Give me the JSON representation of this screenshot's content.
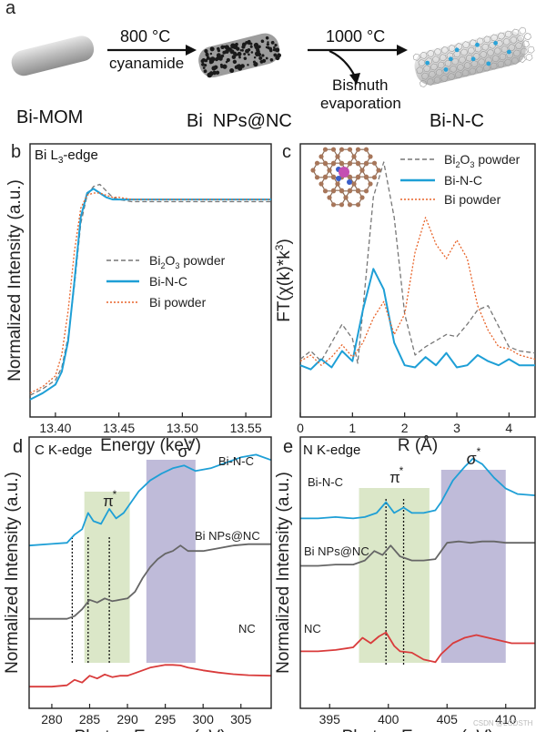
{
  "schematic": {
    "panel_letter": "a",
    "step1_temp": "800 °C",
    "step1_reagent": "cyanamide",
    "step2_temp": "1000 °C",
    "step2_note_line1": "Bismuth",
    "step2_note_line2": "evaporation",
    "label_start": "Bi-MOM",
    "label_mid": "Bi  NPs@NC",
    "label_end": "Bi-N-C"
  },
  "panels": {
    "b": {
      "letter": "b",
      "edge": "Bi L3-edge"
    },
    "c": {
      "letter": "c"
    },
    "d": {
      "letter": "d",
      "edge": "C K-edge",
      "pi": "π*",
      "sigma": "σ*"
    },
    "e": {
      "letter": "e",
      "edge": "N K-edge",
      "pi": "π*",
      "sigma": "σ*"
    }
  },
  "watermark": "CSDN @LGDSTH",
  "chart_data": [
    {
      "id": "b",
      "type": "line",
      "title": "Bi L3-edge",
      "xlabel": "Energy (keV)",
      "ylabel": "Normalized Intensity (a.u.)",
      "xlim": [
        13.38,
        13.57
      ],
      "ylim": [
        0,
        1.1
      ],
      "xticks": [
        13.4,
        13.45,
        13.5,
        13.55
      ],
      "xtick_labels": [
        "13.40",
        "13.45",
        "13.50",
        "13.55"
      ],
      "legend": [
        "Bi2O3 powder",
        "Bi-N-C",
        "Bi powder"
      ],
      "series": [
        {
          "name": "Bi2O3 powder",
          "color": "#777777",
          "dash": "5,3",
          "x": [
            13.38,
            13.39,
            13.4,
            13.405,
            13.41,
            13.415,
            13.42,
            13.425,
            13.43,
            13.435,
            13.44,
            13.445,
            13.45,
            13.46,
            13.48,
            13.5,
            13.52,
            13.54,
            13.57
          ],
          "y": [
            0.05,
            0.08,
            0.12,
            0.18,
            0.32,
            0.56,
            0.85,
            0.98,
            1.02,
            1.03,
            1.0,
            0.97,
            0.96,
            0.95,
            0.95,
            0.95,
            0.95,
            0.95,
            0.95
          ]
        },
        {
          "name": "Bi-N-C",
          "color": "#1e9fd6",
          "dash": "",
          "x": [
            13.38,
            13.39,
            13.4,
            13.405,
            13.41,
            13.415,
            13.42,
            13.425,
            13.43,
            13.435,
            13.44,
            13.445,
            13.45,
            13.46,
            13.48,
            13.5,
            13.52,
            13.54,
            13.57
          ],
          "y": [
            0.03,
            0.06,
            0.1,
            0.16,
            0.3,
            0.58,
            0.88,
            0.99,
            1.01,
            0.99,
            0.97,
            0.96,
            0.96,
            0.96,
            0.96,
            0.96,
            0.96,
            0.96,
            0.96
          ]
        },
        {
          "name": "Bi powder",
          "color": "#e8642a",
          "dash": "2,2",
          "x": [
            13.38,
            13.39,
            13.4,
            13.405,
            13.41,
            13.415,
            13.42,
            13.425,
            13.43,
            13.435,
            13.44,
            13.445,
            13.45,
            13.46,
            13.48,
            13.5,
            13.52,
            13.54,
            13.57
          ],
          "y": [
            0.06,
            0.09,
            0.14,
            0.24,
            0.44,
            0.72,
            0.92,
            0.98,
            0.99,
            0.99,
            0.98,
            0.97,
            0.97,
            0.96,
            0.96,
            0.96,
            0.96,
            0.96,
            0.96
          ]
        }
      ]
    },
    {
      "id": "c",
      "type": "line",
      "xlabel": "R (Å)",
      "ylabel": "FT(χ(k)*k3)",
      "xlim": [
        0,
        4.5
      ],
      "ylim": [
        0,
        1.1
      ],
      "xticks": [
        0,
        1,
        2,
        3,
        4
      ],
      "xtick_labels": [
        "0",
        "1",
        "2",
        "3",
        "4"
      ],
      "legend": [
        "Bi2O3 powder",
        "Bi-N-C",
        "Bi powder"
      ],
      "series": [
        {
          "name": "Bi2O3 powder",
          "color": "#777777",
          "dash": "5,3",
          "x": [
            0,
            0.2,
            0.4,
            0.6,
            0.8,
            1.0,
            1.1,
            1.2,
            1.4,
            1.6,
            1.8,
            2.0,
            2.2,
            2.4,
            2.6,
            2.8,
            3.0,
            3.2,
            3.4,
            3.6,
            3.8,
            4.0,
            4.2,
            4.5
          ],
          "y": [
            0.06,
            0.1,
            0.05,
            0.14,
            0.23,
            0.16,
            0.04,
            0.3,
            0.85,
            1.02,
            0.75,
            0.28,
            0.08,
            0.12,
            0.15,
            0.18,
            0.17,
            0.23,
            0.3,
            0.32,
            0.22,
            0.12,
            0.1,
            0.09
          ]
        },
        {
          "name": "Bi-N-C",
          "color": "#1e9fd6",
          "dash": "",
          "x": [
            0,
            0.2,
            0.4,
            0.6,
            0.8,
            1.0,
            1.2,
            1.4,
            1.6,
            1.8,
            2.0,
            2.2,
            2.4,
            2.6,
            2.8,
            3.0,
            3.2,
            3.4,
            3.6,
            3.8,
            4.0,
            4.2,
            4.5
          ],
          "y": [
            0.03,
            0.01,
            0.06,
            0.02,
            0.1,
            0.05,
            0.3,
            0.5,
            0.4,
            0.14,
            0.03,
            0.02,
            0.07,
            0.03,
            0.09,
            0.02,
            0.03,
            0.08,
            0.05,
            0.03,
            0.06,
            0.03,
            0.03
          ]
        },
        {
          "name": "Bi powder",
          "color": "#e8642a",
          "dash": "2,2",
          "x": [
            0,
            0.2,
            0.4,
            0.6,
            0.8,
            1.0,
            1.2,
            1.4,
            1.6,
            1.8,
            2.0,
            2.2,
            2.4,
            2.6,
            2.8,
            3.0,
            3.2,
            3.4,
            3.6,
            3.8,
            4.0,
            4.2,
            4.5
          ],
          "y": [
            0.05,
            0.08,
            0.03,
            0.07,
            0.13,
            0.07,
            0.14,
            0.26,
            0.34,
            0.18,
            0.28,
            0.58,
            0.75,
            0.62,
            0.55,
            0.64,
            0.55,
            0.32,
            0.2,
            0.12,
            0.11,
            0.08,
            0.06
          ]
        }
      ]
    },
    {
      "id": "d",
      "type": "line",
      "xlabel": "Photon Energy (eV)",
      "ylabel": "Normalized Intensity (a.u.)",
      "xlim": [
        277,
        309
      ],
      "ylim": [
        0,
        1
      ],
      "xticks": [
        280,
        285,
        290,
        295,
        300,
        305
      ],
      "xtick_labels": [
        "280",
        "285",
        "290",
        "295",
        "300",
        "305"
      ],
      "shaded": [
        {
          "x": [
            284.3,
            290.3
          ],
          "color": "#cfdfb5"
        },
        {
          "x": [
            292.5,
            299
          ],
          "color": "#a9a4cc"
        }
      ],
      "dotted_lines": [
        282.7,
        284.8,
        287.6
      ],
      "series": [
        {
          "name": "Bi-N-C",
          "color": "#1e9fd6",
          "label": "Bi-N-C",
          "x": [
            277,
            280,
            282,
            283,
            284,
            284.8,
            285.5,
            286.5,
            287.6,
            288.5,
            289.5,
            290.5,
            291.5,
            293,
            294.5,
            296,
            297.5,
            299,
            301,
            303,
            305,
            307,
            309
          ],
          "y": [
            0.6,
            0.606,
            0.61,
            0.64,
            0.66,
            0.72,
            0.69,
            0.68,
            0.735,
            0.7,
            0.72,
            0.76,
            0.8,
            0.84,
            0.865,
            0.885,
            0.895,
            0.875,
            0.885,
            0.905,
            0.925,
            0.935,
            0.915
          ]
        },
        {
          "name": "Bi NPs@NC",
          "color": "#666666",
          "label": "Bi NPs@NC",
          "x": [
            277,
            280,
            282,
            283,
            284,
            285,
            286,
            287,
            288,
            289,
            290,
            291,
            292,
            293,
            294,
            295,
            296,
            297,
            298,
            300,
            302,
            304,
            306,
            309
          ],
          "y": [
            0.33,
            0.33,
            0.33,
            0.34,
            0.365,
            0.4,
            0.39,
            0.405,
            0.395,
            0.4,
            0.405,
            0.43,
            0.48,
            0.52,
            0.55,
            0.57,
            0.58,
            0.6,
            0.58,
            0.58,
            0.59,
            0.6,
            0.605,
            0.605
          ]
        },
        {
          "name": "NC",
          "color": "#d93b3b",
          "label": "NC",
          "x": [
            277,
            280,
            282,
            283,
            284,
            285,
            286,
            287,
            288,
            289,
            290,
            291,
            292,
            293,
            294,
            295,
            296,
            297,
            298,
            300,
            302,
            304,
            306,
            309
          ],
          "y": [
            0.08,
            0.08,
            0.085,
            0.105,
            0.095,
            0.12,
            0.11,
            0.125,
            0.115,
            0.12,
            0.12,
            0.13,
            0.14,
            0.15,
            0.155,
            0.16,
            0.16,
            0.158,
            0.15,
            0.14,
            0.132,
            0.126,
            0.122,
            0.12
          ]
        }
      ]
    },
    {
      "id": "e",
      "type": "line",
      "xlabel": "Photon Energy (eV)",
      "ylabel": "Normalized Intensity (a.u.)",
      "xlim": [
        392.5,
        412.5
      ],
      "ylim": [
        0,
        1
      ],
      "xticks": [
        395,
        400,
        405,
        410
      ],
      "xtick_labels": [
        "395",
        "400",
        "405",
        "410"
      ],
      "shaded": [
        {
          "x": [
            397.5,
            403.5
          ],
          "color": "#cfdfb5"
        },
        {
          "x": [
            404.5,
            410
          ],
          "color": "#a9a4cc"
        }
      ],
      "dotted_lines": [
        399.8,
        401.3
      ],
      "series": [
        {
          "name": "Bi-N-C",
          "color": "#1e9fd6",
          "label": "Bi-N-C",
          "x": [
            392.5,
            394,
            395.5,
            397,
            398,
            399,
            399.8,
            400.5,
            401.3,
            402,
            403,
            404,
            404.5,
            405.5,
            406.5,
            407.2,
            408,
            409,
            410,
            411,
            412.5
          ],
          "y": [
            0.7,
            0.7,
            0.705,
            0.7,
            0.705,
            0.72,
            0.76,
            0.72,
            0.74,
            0.72,
            0.72,
            0.73,
            0.76,
            0.84,
            0.89,
            0.92,
            0.9,
            0.85,
            0.81,
            0.79,
            0.785
          ]
        },
        {
          "name": "Bi NPs@NC",
          "color": "#666666",
          "label": "Bi NPs@NC",
          "x": [
            392.5,
            394,
            395.5,
            397,
            398,
            398.8,
            399.5,
            400.2,
            401,
            402,
            403,
            404,
            405,
            406,
            407,
            408,
            409,
            410,
            411,
            412.5
          ],
          "y": [
            0.525,
            0.525,
            0.53,
            0.53,
            0.545,
            0.58,
            0.565,
            0.6,
            0.56,
            0.545,
            0.545,
            0.55,
            0.61,
            0.615,
            0.61,
            0.615,
            0.615,
            0.61,
            0.61,
            0.61
          ]
        },
        {
          "name": "NC",
          "color": "#d93b3b",
          "label": "NC",
          "x": [
            392.5,
            394,
            395.5,
            397,
            397.8,
            398.5,
            399.2,
            399.8,
            400.5,
            401,
            402,
            403,
            404,
            404.5,
            405.5,
            406.5,
            407.5,
            408.5,
            409.5,
            410.5,
            411.5,
            412.5
          ],
          "y": [
            0.21,
            0.21,
            0.215,
            0.225,
            0.26,
            0.24,
            0.265,
            0.28,
            0.23,
            0.21,
            0.205,
            0.18,
            0.17,
            0.2,
            0.24,
            0.26,
            0.27,
            0.26,
            0.25,
            0.24,
            0.24,
            0.24
          ]
        }
      ]
    }
  ]
}
